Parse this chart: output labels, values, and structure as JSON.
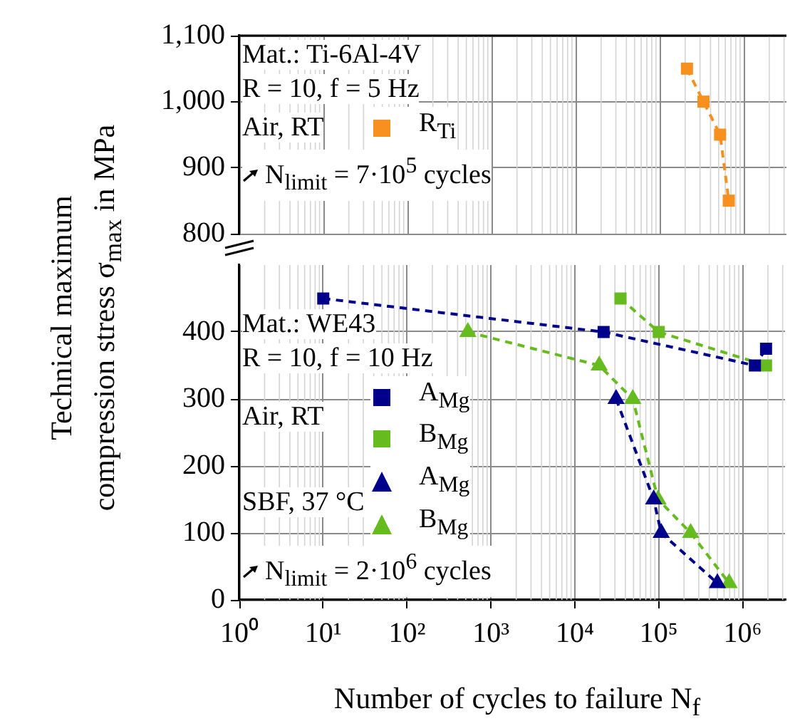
{
  "chart_data": [
    {
      "type": "line",
      "log": "x",
      "grid": true,
      "legend": "top left",
      "tick_labels": "y",
      "line_style": "dashed",
      "xlim": [
        1,
        3200000
      ],
      "xticks": [
        {
          "value": 1,
          "label": null
        },
        {
          "value": 10,
          "label": null
        },
        {
          "value": 100,
          "label": null
        },
        {
          "value": 1000,
          "label": null
        },
        {
          "value": 10000,
          "label": null
        },
        {
          "value": 100000,
          "label": null
        },
        {
          "value": 1000000,
          "label": null
        }
      ],
      "ylim": [
        800,
        1100
      ],
      "yticks": [
        {
          "value": 800,
          "label": "800"
        },
        {
          "value": 900,
          "label": "900"
        },
        {
          "value": 1000,
          "label": "1,000"
        },
        {
          "value": 1100,
          "label": "1,100"
        }
      ],
      "annotations": [
        "Mat.: Ti-6Al-4V",
        "R = 10, f = 5 Hz",
        "Air, RT",
        "N$_{limit}$ = 7·10$^{5}$ cycles"
      ],
      "series": [
        {
          "name": "R$_{Ti}$",
          "color": "#f7901e",
          "marker": "square",
          "x": [
            210000,
            330000,
            520000,
            660000
          ],
          "values": [
            1050,
            1000,
            950,
            850
          ]
        }
      ]
    },
    {
      "type": "line",
      "log": "x",
      "grid": true,
      "legend": "bottom left",
      "line_style": "dashed",
      "xlim": [
        1,
        3200000
      ],
      "xlabel": "Number of cycles to failure N$_{f}$",
      "ylabel": "Technical maximum compression stress σ$_{max}$ in MPa",
      "xticks": [
        {
          "value": 1,
          "label": "10⁰"
        },
        {
          "value": 10,
          "label": "10¹"
        },
        {
          "value": 100,
          "label": "10²"
        },
        {
          "value": 1000,
          "label": "10³"
        },
        {
          "value": 10000,
          "label": "10⁴"
        },
        {
          "value": 100000,
          "label": "10⁵"
        },
        {
          "value": 1000000,
          "label": "10⁶"
        }
      ],
      "ylim": [
        0,
        500
      ],
      "yticks": [
        0,
        100,
        200,
        300,
        400
      ],
      "annotations": [
        "Mat.: WE43",
        "R = 10, f = 10 Hz",
        "Air, RT",
        "SBF, 37 °C",
        "N$_{limit}$ = 2·10$^{6}$ cycles"
      ],
      "series": [
        {
          "name": "A$_{Mg}$",
          "color": "#00008b",
          "marker": "square",
          "x": [
            10,
            22000,
            1400000,
            1900000
          ],
          "values": [
            450,
            400,
            350,
            375
          ]
        },
        {
          "name": "B$_{Mg}$",
          "color": "#66bb1e",
          "marker": "square",
          "x": [
            35000,
            100000,
            1900000
          ],
          "values": [
            450,
            400,
            350
          ]
        },
        {
          "name": "A$_{Mg}$",
          "color": "#00008b",
          "marker": "triangle",
          "x": [
            31000,
            87000,
            107000,
            500000
          ],
          "values": [
            300,
            150,
            100,
            25
          ]
        },
        {
          "name": "B$_{Mg}$",
          "color": "#66bb1e",
          "marker": "triangle",
          "x": [
            530,
            19500,
            49000,
            98000,
            240000,
            690000
          ],
          "values": [
            400,
            350,
            300,
            150,
            100,
            25
          ]
        }
      ]
    }
  ]
}
